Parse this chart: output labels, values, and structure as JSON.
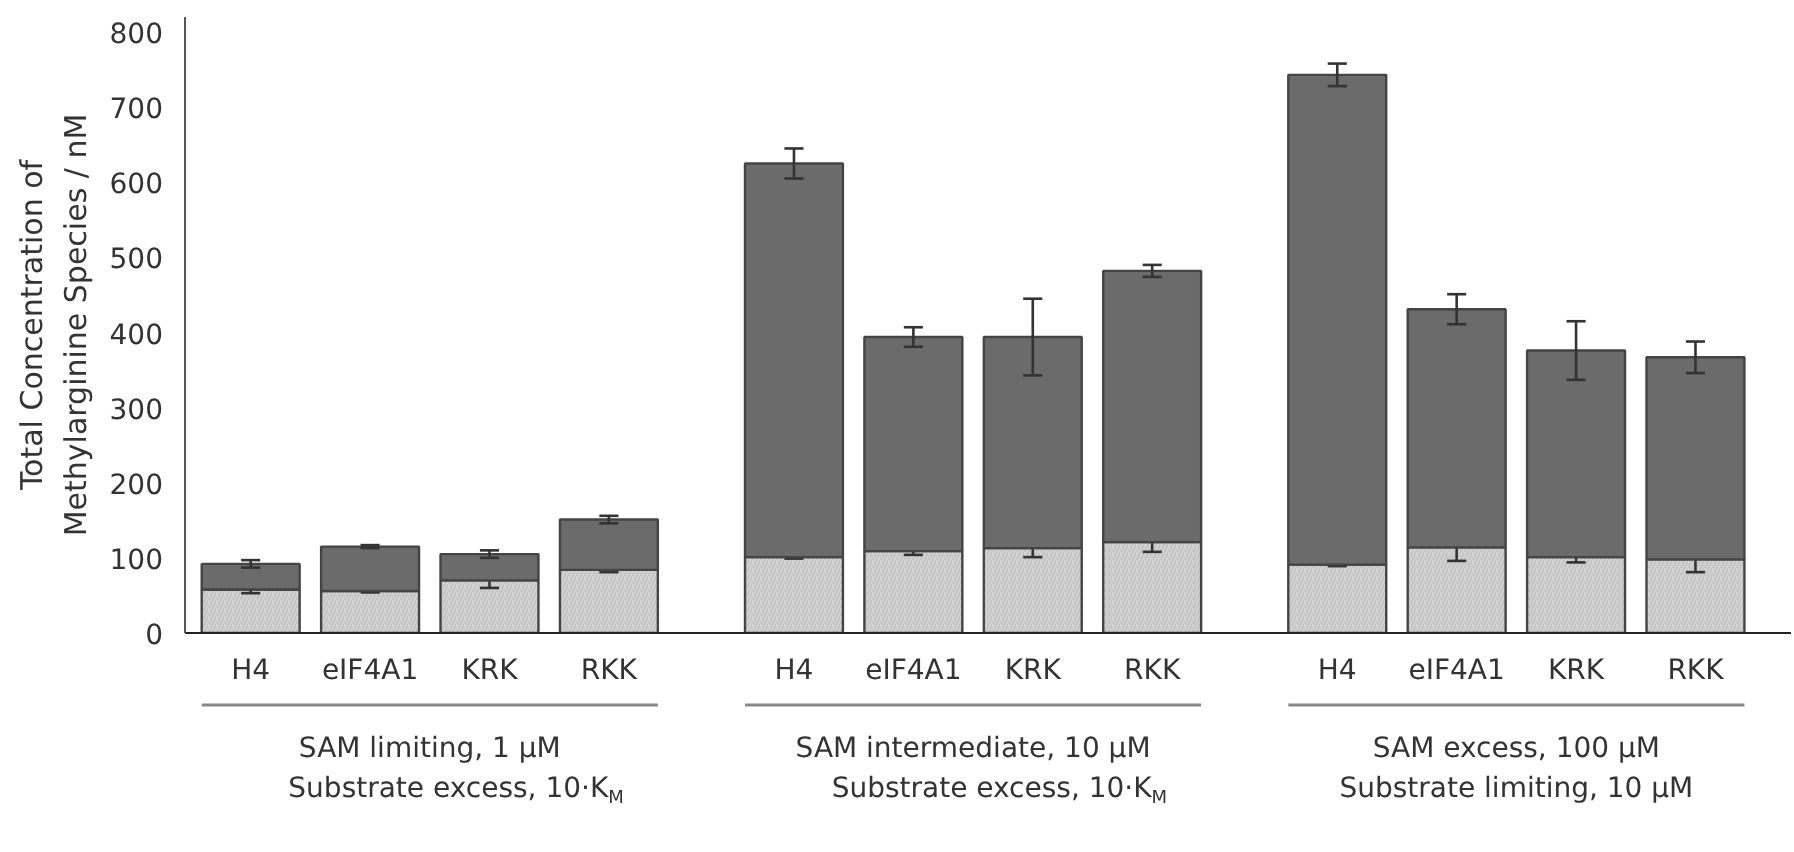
{
  "chart_data": {
    "type": "bar",
    "stacked": true,
    "ylabel": "Total Concentration of\nMethylarginine Species / nM",
    "categories": [
      "H4",
      "eIF4A1",
      "KRK",
      "RKK",
      "H4",
      "eIF4A1",
      "KRK",
      "RKK",
      "H4",
      "eIF4A1",
      "KRK",
      "RKK"
    ],
    "series": [
      {
        "color": "#d3d3d3",
        "values": [
          58,
          56,
          70,
          84,
          101,
          109,
          113,
          121,
          91,
          114,
          101,
          98
        ],
        "errors": [
          5,
          2,
          10,
          3,
          2,
          5,
          12,
          13,
          2,
          18,
          7,
          17
        ]
      },
      {
        "color": "#6b6b6b",
        "values": [
          34,
          59,
          35,
          67,
          524,
          285,
          281,
          361,
          652,
          317,
          275,
          269
        ],
        "errors": [
          5,
          2,
          5,
          5,
          20,
          13,
          51,
          8,
          15,
          20,
          39,
          21
        ]
      }
    ],
    "ylim": [
      0,
      820
    ],
    "yticks": [
      0,
      100,
      200,
      300,
      400,
      500,
      600,
      700,
      800
    ],
    "grid": false,
    "annotations": [
      "SAM limiting, 1 µM\nSubstrate excess, 10·K$_{M}$",
      "SAM intermediate, 10 µM\nSubstrate excess, 10·K$_{M}$",
      "SAM excess, 100 µM\nSubstrate limiting, 10 µM"
    ]
  }
}
